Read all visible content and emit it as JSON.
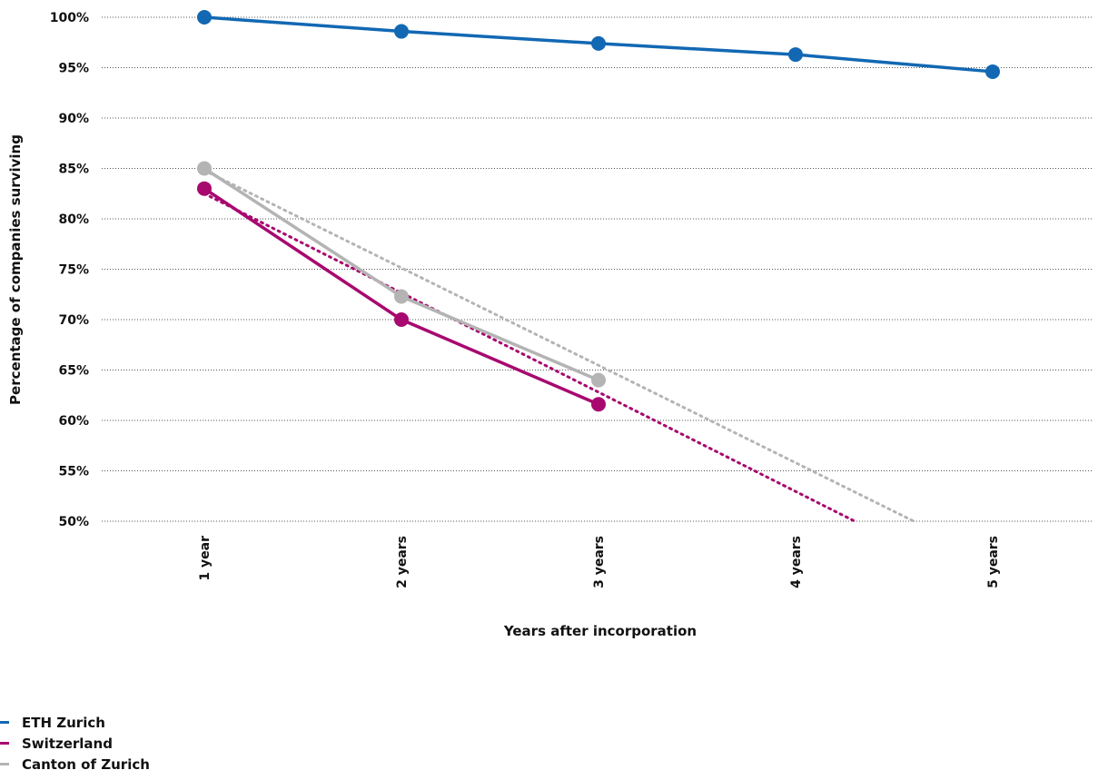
{
  "chart_data": {
    "type": "line",
    "title": "",
    "xlabel": "Years after incorporation",
    "ylabel": "Percentage of companies surviving",
    "categories": [
      "1 year",
      "2 years",
      "3 years",
      "4 years",
      "5 years"
    ],
    "ylim": [
      50,
      100
    ],
    "yticks": [
      50,
      55,
      60,
      65,
      70,
      75,
      80,
      85,
      90,
      95,
      100
    ],
    "ytick_labels": [
      "50%",
      "55%",
      "60%",
      "65%",
      "70%",
      "75%",
      "80%",
      "85%",
      "90%",
      "95%",
      "100%"
    ],
    "grid": "horizontal dotted",
    "legend_position": "bottom-left",
    "series": [
      {
        "name": "ETH Zurich",
        "color": "#1268b3",
        "values": [
          100,
          98.6,
          97.4,
          96.3,
          94.6
        ]
      },
      {
        "name": "Switzerland",
        "color": "#a7096f",
        "values": [
          83,
          70,
          61.6,
          null,
          null
        ],
        "trend": [
          [
            1,
            82.5
          ],
          [
            4.3,
            50
          ]
        ]
      },
      {
        "name": "Canton of Zurich",
        "color": "#b4b4b4",
        "values": [
          85,
          72.3,
          64,
          null,
          null
        ],
        "trend": [
          [
            1,
            84.8
          ],
          [
            4.6,
            50
          ]
        ]
      }
    ]
  }
}
